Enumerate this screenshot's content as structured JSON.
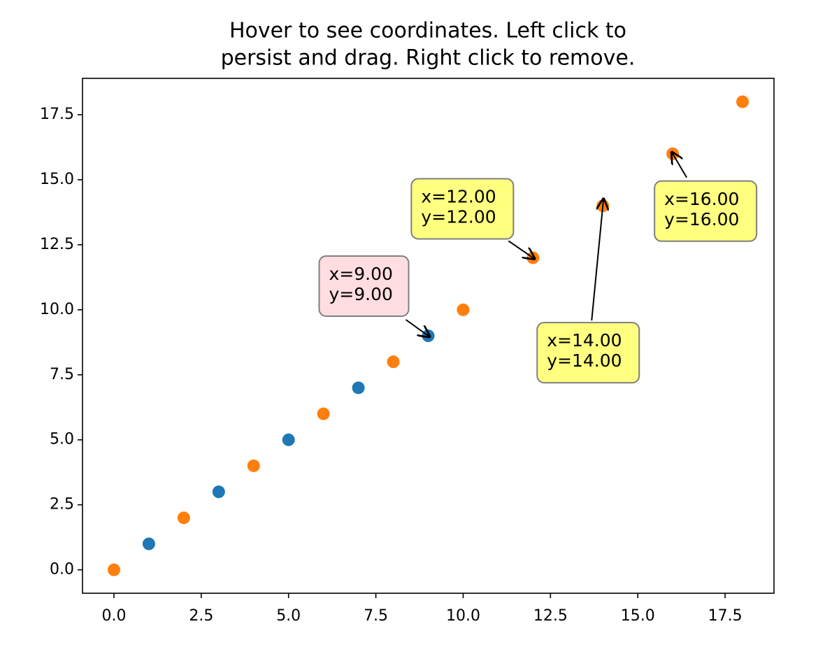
{
  "chart_data": {
    "type": "scatter",
    "title": [
      "Hover to see coordinates. Left click to",
      "persist and drag. Right click to remove."
    ],
    "series": [
      {
        "color": "#1f77b4",
        "x": [
          1,
          3,
          5,
          7,
          9
        ],
        "values": [
          1,
          3,
          5,
          7,
          9
        ]
      },
      {
        "color": "#ff7f0e",
        "x": [
          0,
          2,
          4,
          6,
          8,
          10,
          12,
          14,
          16,
          18
        ],
        "values": [
          0,
          2,
          4,
          6,
          8,
          10,
          12,
          14,
          16,
          18
        ]
      }
    ],
    "xlim": [
      -0.9,
      18.9
    ],
    "ylim": [
      -0.9,
      18.9
    ],
    "xticks": [
      {
        "value": 0,
        "label": "0.0"
      },
      2.5,
      {
        "value": 5,
        "label": "5.0"
      },
      7.5,
      {
        "value": 10,
        "label": "10.0"
      },
      12.5,
      {
        "value": 15,
        "label": "15.0"
      },
      17.5
    ],
    "yticks": [
      {
        "value": 0,
        "label": "0.0"
      },
      2.5,
      {
        "value": 5,
        "label": "5.0"
      },
      7.5,
      {
        "value": 10,
        "label": "10.0"
      },
      12.5,
      {
        "value": 15,
        "label": "15.0"
      },
      17.5
    ],
    "annotations": [
      {
        "x": 9,
        "y": 9,
        "color": "#ffdde0",
        "lines": [
          "x=9.00",
          "y=9.00"
        ]
      },
      {
        "x": 12,
        "y": 12,
        "color": "#ffff80",
        "lines": [
          "x=12.00",
          "y=12.00"
        ]
      },
      {
        "x": 14,
        "y": 14,
        "color": "#ffff80",
        "lines": [
          "x=14.00",
          "y=14.00"
        ]
      },
      {
        "x": 16,
        "y": 16,
        "color": "#ffff80",
        "lines": [
          "x=16.00",
          "y=16.00"
        ]
      }
    ]
  }
}
